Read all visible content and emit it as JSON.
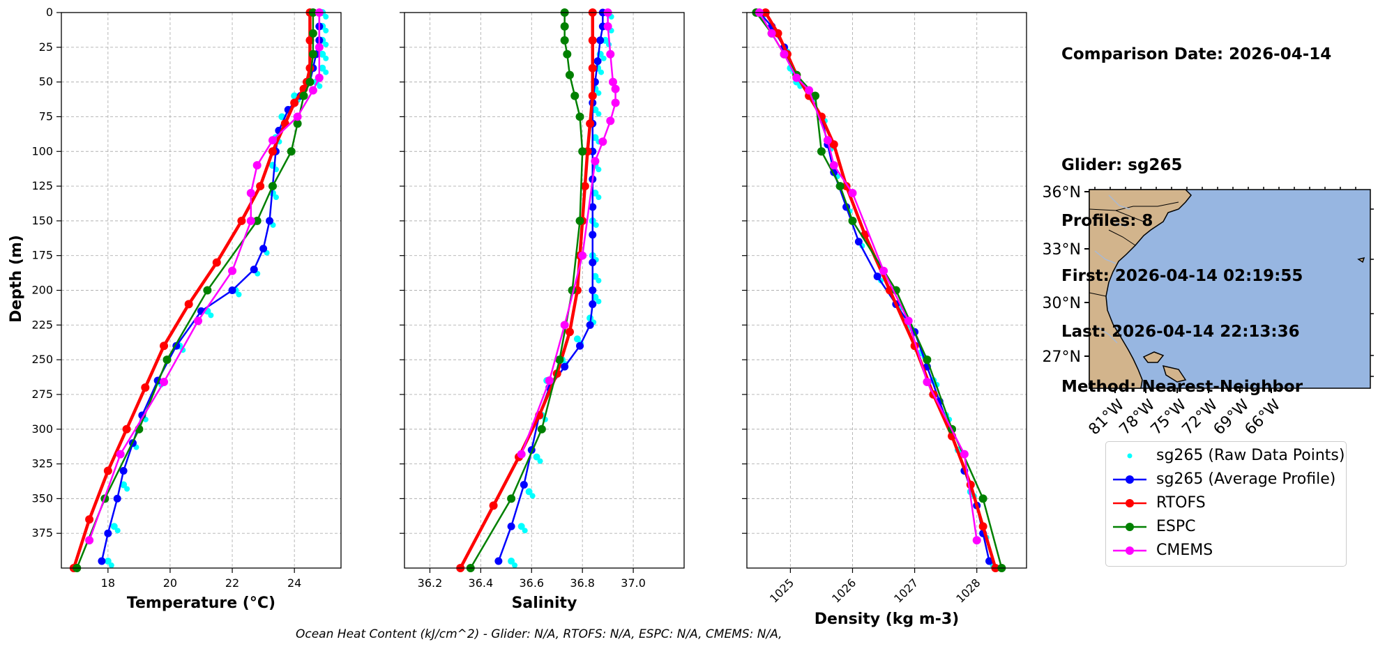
{
  "info": {
    "comparison_date": "Comparison Date: 2026-04-14",
    "glider": "Glider: sg265",
    "profiles": "Profiles: 8",
    "first": "First: 2026-04-14 02:19:55",
    "last": "Last: 2026-04-14 22:13:36",
    "method": "Method: Nearest-Neighbor"
  },
  "footnote": "Ocean Heat Content (kJ/cm^2) - Glider: N/A,  RTOFS: N/A,  ESPC: N/A,  CMEMS: N/A,",
  "legend": [
    {
      "label": "sg265 (Raw Data Points)",
      "color": "#00ffff",
      "style": "points"
    },
    {
      "label": "sg265 (Average Profile)",
      "color": "#0000ff",
      "style": "line-marker"
    },
    {
      "label": "RTOFS",
      "color": "#ff0000",
      "style": "line-marker"
    },
    {
      "label": "ESPC",
      "color": "#008000",
      "style": "line-marker"
    },
    {
      "label": "CMEMS",
      "color": "#ff00ff",
      "style": "line-marker"
    }
  ],
  "map": {
    "lat_ticks": [
      "36°N",
      "33°N",
      "30°N",
      "27°N"
    ],
    "lon_ticks": [
      "81°W",
      "78°W",
      "75°W",
      "72°W",
      "69°W",
      "66°W"
    ],
    "ocean_color": "#97b6e1",
    "land_color": "#d2b48c"
  },
  "chart_data": [
    {
      "type": "line",
      "xlabel": "Temperature (°C)",
      "ylabel": "Depth (m)",
      "xlim": [
        16.5,
        25.5
      ],
      "ylim": [
        400,
        0
      ],
      "xticks": [
        18,
        20,
        22,
        24
      ],
      "yticks": [
        0,
        25,
        50,
        75,
        100,
        125,
        150,
        175,
        200,
        225,
        250,
        275,
        300,
        325,
        350,
        375
      ],
      "grid": true,
      "series": [
        {
          "name": "sg265 (Raw Data Points)",
          "color": "#00ffff",
          "x": [
            24.9,
            24.9,
            24.9,
            24.9,
            24.9,
            24.7,
            24.0,
            23.6,
            23.4,
            23.3,
            23.3,
            23.2,
            23.0,
            22.7,
            22.1,
            21.2,
            20.3,
            19.6,
            19.1,
            18.8,
            18.5,
            18.2,
            18.0
          ],
          "y": [
            0,
            10,
            20,
            30,
            40,
            50,
            60,
            75,
            90,
            110,
            130,
            150,
            170,
            185,
            200,
            215,
            240,
            265,
            290,
            310,
            340,
            370,
            395
          ]
        },
        {
          "name": "sg265 (Average Profile)",
          "color": "#0000ff",
          "x": [
            24.8,
            24.8,
            24.8,
            24.7,
            24.6,
            24.5,
            24.2,
            23.8,
            23.5,
            23.4,
            23.3,
            23.2,
            23.0,
            22.7,
            22.0,
            21.0,
            20.2,
            19.6,
            19.1,
            18.8,
            18.5,
            18.3,
            18.0,
            17.8
          ],
          "y": [
            0,
            10,
            20,
            30,
            40,
            50,
            60,
            70,
            85,
            100,
            125,
            150,
            170,
            185,
            200,
            215,
            240,
            265,
            290,
            310,
            330,
            350,
            375,
            395
          ]
        },
        {
          "name": "RTOFS",
          "color": "#ff0000",
          "x": [
            24.5,
            24.5,
            24.5,
            24.4,
            24.3,
            24.0,
            23.7,
            23.3,
            22.9,
            22.3,
            21.5,
            20.6,
            19.8,
            19.2,
            18.6,
            18.0,
            17.4,
            16.9
          ],
          "y": [
            0,
            20,
            40,
            50,
            55,
            65,
            80,
            100,
            125,
            150,
            180,
            210,
            240,
            270,
            300,
            330,
            365,
            400
          ]
        },
        {
          "name": "ESPC",
          "color": "#008000",
          "x": [
            24.6,
            24.6,
            24.6,
            24.5,
            24.3,
            24.1,
            23.9,
            23.3,
            22.8,
            21.2,
            19.9,
            19.0,
            17.9,
            17.0
          ],
          "y": [
            0,
            15,
            30,
            50,
            60,
            80,
            100,
            125,
            150,
            200,
            250,
            300,
            350,
            400
          ]
        },
        {
          "name": "CMEMS",
          "color": "#ff00ff",
          "x": [
            24.8,
            24.8,
            24.8,
            24.6,
            24.1,
            23.3,
            22.8,
            22.6,
            22.6,
            22.0,
            20.9,
            19.8,
            18.4,
            17.4
          ],
          "y": [
            0,
            25,
            47,
            56,
            75,
            92,
            110,
            130,
            150,
            186,
            222,
            266,
            318,
            380
          ]
        }
      ]
    },
    {
      "type": "line",
      "xlabel": "Salinity",
      "ylabel": "",
      "xlim": [
        36.1,
        37.2
      ],
      "ylim": [
        400,
        0
      ],
      "xticks": [
        36.2,
        36.4,
        36.6,
        36.8,
        37.0
      ],
      "grid": true,
      "series": [
        {
          "name": "sg265 (Raw Data Points)",
          "color": "#00ffff",
          "x": [
            36.9,
            36.9,
            36.89,
            36.87,
            36.86,
            36.85,
            36.85,
            36.85,
            36.85,
            36.85,
            36.84,
            36.84,
            36.85,
            36.85,
            36.83,
            36.78,
            36.72,
            36.66,
            36.64,
            36.62,
            36.59,
            36.56,
            36.52
          ],
          "y": [
            0,
            10,
            20,
            30,
            40,
            55,
            70,
            90,
            110,
            130,
            150,
            175,
            190,
            205,
            220,
            235,
            250,
            265,
            290,
            320,
            345,
            370,
            395
          ]
        },
        {
          "name": "sg265 (Average Profile)",
          "color": "#0000ff",
          "x": [
            36.88,
            36.88,
            36.87,
            36.86,
            36.85,
            36.84,
            36.84,
            36.84,
            36.84,
            36.84,
            36.84,
            36.84,
            36.84,
            36.84,
            36.83,
            36.79,
            36.73,
            36.67,
            36.63,
            36.6,
            36.57,
            36.52,
            36.47
          ],
          "y": [
            0,
            10,
            20,
            35,
            50,
            65,
            80,
            100,
            120,
            140,
            160,
            180,
            200,
            210,
            225,
            240,
            255,
            270,
            290,
            315,
            340,
            370,
            395
          ]
        },
        {
          "name": "RTOFS",
          "color": "#ff0000",
          "x": [
            36.84,
            36.84,
            36.84,
            36.84,
            36.83,
            36.82,
            36.81,
            36.8,
            36.79,
            36.78,
            36.75,
            36.7,
            36.63,
            36.55,
            36.45,
            36.32
          ],
          "y": [
            0,
            20,
            40,
            60,
            80,
            100,
            125,
            150,
            175,
            200,
            230,
            260,
            290,
            320,
            355,
            400
          ]
        },
        {
          "name": "ESPC",
          "color": "#008000",
          "x": [
            36.73,
            36.73,
            36.73,
            36.74,
            36.75,
            36.77,
            36.79,
            36.8,
            36.79,
            36.76,
            36.71,
            36.64,
            36.52,
            36.36
          ],
          "y": [
            0,
            10,
            20,
            30,
            45,
            60,
            75,
            100,
            150,
            200,
            250,
            300,
            350,
            400
          ]
        },
        {
          "name": "CMEMS",
          "color": "#ff00ff",
          "x": [
            36.9,
            36.9,
            36.91,
            36.92,
            36.93,
            36.93,
            36.91,
            36.88,
            36.85,
            36.8,
            36.73,
            36.67,
            36.56
          ],
          "y": [
            0,
            10,
            30,
            50,
            55,
            65,
            78,
            93,
            107,
            175,
            225,
            265,
            318
          ]
        }
      ]
    },
    {
      "type": "line",
      "xlabel": "Density (kg m-3)",
      "ylabel": "",
      "xlim": [
        1024.3,
        1028.8
      ],
      "ylim": [
        400,
        0
      ],
      "xticks": [
        1025,
        1026,
        1027,
        1028
      ],
      "grid": true,
      "series": [
        {
          "name": "sg265 (Raw Data Points)",
          "color": "#00ffff",
          "x": [
            1024.5,
            1024.7,
            1024.9,
            1025.0,
            1025.1,
            1025.3,
            1025.5,
            1025.6,
            1025.7,
            1025.9,
            1026.1,
            1026.4,
            1026.7,
            1026.9,
            1027.1,
            1027.3,
            1027.5,
            1027.7,
            1027.9,
            1028.1,
            1028.2
          ],
          "y": [
            0,
            10,
            25,
            40,
            50,
            60,
            75,
            95,
            115,
            140,
            165,
            190,
            210,
            225,
            245,
            265,
            290,
            315,
            345,
            375,
            395
          ]
        },
        {
          "name": "sg265 (Average Profile)",
          "color": "#0000ff",
          "x": [
            1024.5,
            1024.7,
            1024.9,
            1025.1,
            1025.3,
            1025.5,
            1025.6,
            1025.7,
            1025.9,
            1026.1,
            1026.4,
            1026.7,
            1027.0,
            1027.2,
            1027.4,
            1027.6,
            1027.8,
            1028.0,
            1028.1,
            1028.2
          ],
          "y": [
            0,
            10,
            25,
            45,
            60,
            75,
            95,
            115,
            140,
            165,
            190,
            210,
            230,
            255,
            280,
            305,
            330,
            355,
            375,
            395
          ]
        },
        {
          "name": "RTOFS",
          "color": "#ff0000",
          "x": [
            1024.6,
            1024.8,
            1024.95,
            1025.1,
            1025.3,
            1025.5,
            1025.7,
            1025.9,
            1026.2,
            1026.6,
            1027.0,
            1027.3,
            1027.6,
            1027.9,
            1028.1,
            1028.3
          ],
          "y": [
            0,
            15,
            30,
            45,
            60,
            75,
            95,
            125,
            160,
            200,
            240,
            275,
            305,
            340,
            370,
            400
          ]
        },
        {
          "name": "ESPC",
          "color": "#008000",
          "x": [
            1024.45,
            1024.7,
            1024.9,
            1025.1,
            1025.4,
            1025.5,
            1025.8,
            1026.0,
            1026.7,
            1027.2,
            1027.6,
            1028.1,
            1028.4
          ],
          "y": [
            0,
            15,
            30,
            45,
            60,
            100,
            125,
            150,
            200,
            250,
            300,
            350,
            400
          ]
        },
        {
          "name": "CMEMS",
          "color": "#ff00ff",
          "x": [
            1024.5,
            1024.7,
            1024.9,
            1025.1,
            1025.3,
            1025.6,
            1025.7,
            1026.0,
            1026.5,
            1026.9,
            1027.2,
            1027.8,
            1028.0
          ],
          "y": [
            0,
            15,
            30,
            47,
            56,
            92,
            110,
            130,
            186,
            222,
            266,
            318,
            380
          ]
        }
      ]
    }
  ]
}
